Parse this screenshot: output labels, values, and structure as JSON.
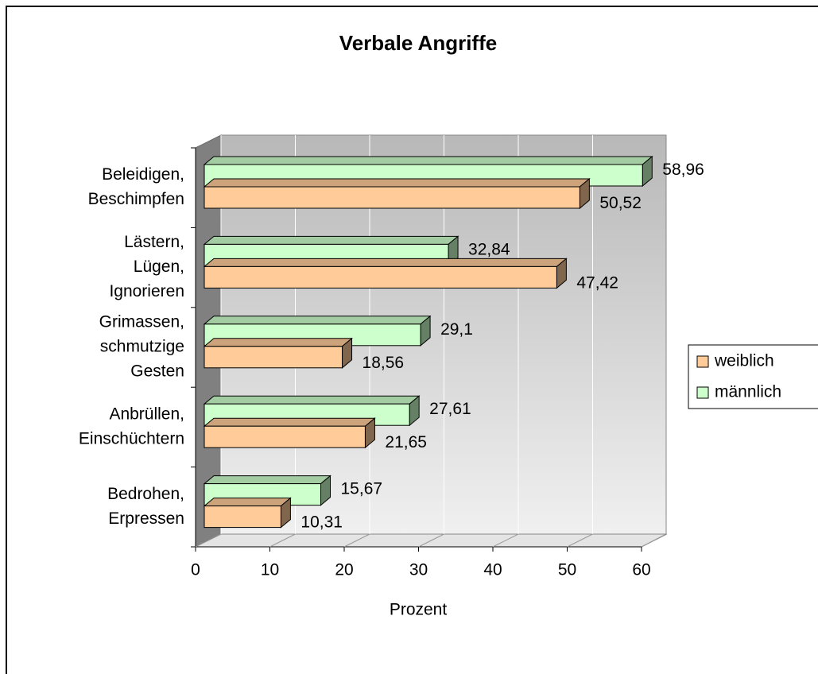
{
  "chart_data": {
    "type": "bar3d_horizontal",
    "title": "Verbale Angriffe",
    "categories": [
      [
        "Beleidigen,",
        "Beschimpfen"
      ],
      [
        "Lästern,",
        "Lügen,",
        "Ignorieren"
      ],
      [
        "Grimassen,",
        "schmutzige",
        "Gesten"
      ],
      [
        "Anbrüllen,",
        "Einschüchtern"
      ],
      [
        "Bedrohen,",
        "Erpressen"
      ]
    ],
    "series": [
      {
        "name": "weiblich",
        "color": "#ffcc99",
        "values": [
          50.52,
          47.42,
          18.56,
          21.65,
          10.31
        ],
        "value_labels": [
          "50,52",
          "47,42",
          "18,56",
          "21,65",
          "10,31"
        ]
      },
      {
        "name": "männlich",
        "color": "#ccffcc",
        "values": [
          58.96,
          32.84,
          29.1,
          27.61,
          15.67
        ],
        "value_labels": [
          "58,96",
          "32,84",
          "29,1",
          "27,61",
          "15,67"
        ]
      }
    ],
    "xlabel": "Prozent",
    "xlim": [
      0,
      60
    ],
    "xticks": [
      0,
      10,
      20,
      30,
      40,
      50,
      60
    ],
    "grid": true,
    "legend": "right"
  }
}
